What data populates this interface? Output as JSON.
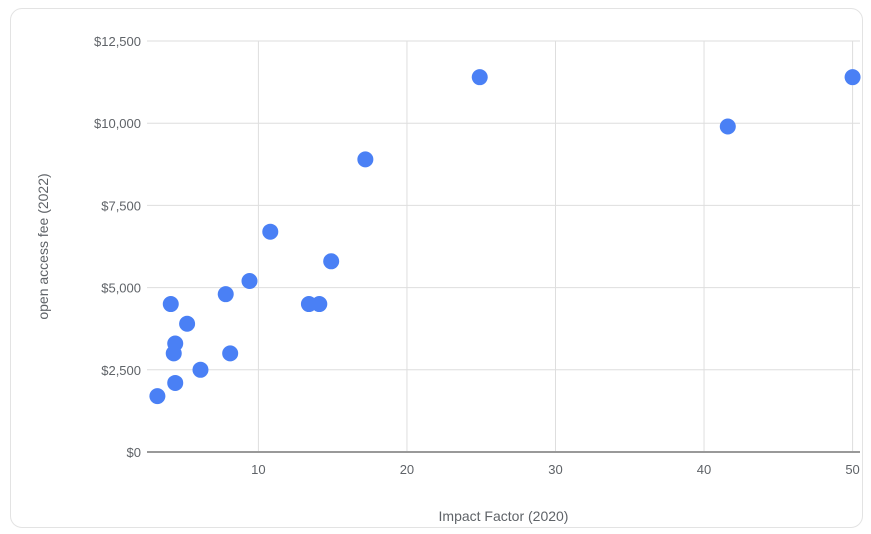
{
  "chart_data": {
    "type": "scatter",
    "xlabel": "Impact Factor (2020)",
    "ylabel": "open access fee (2022)",
    "xlim": [
      2.5,
      50.5
    ],
    "ylim": [
      0,
      12500
    ],
    "x_ticks": [
      10,
      20,
      30,
      40,
      50
    ],
    "x_tick_labels": [
      "10",
      "20",
      "30",
      "40",
      "50"
    ],
    "y_ticks": [
      0,
      2500,
      5000,
      7500,
      10000,
      12500
    ],
    "y_tick_labels": [
      "$0",
      "$2,500",
      "$5,000",
      "$7,500",
      "$10,000",
      "$12,500"
    ],
    "grid": true,
    "colors": {
      "point": "#4a80f5",
      "grid": "#dedede",
      "baseline": "#999999"
    },
    "series": [
      {
        "points": [
          {
            "x": 3.2,
            "y": 1700
          },
          {
            "x": 4.1,
            "y": 4500
          },
          {
            "x": 4.3,
            "y": 3000
          },
          {
            "x": 4.4,
            "y": 3300
          },
          {
            "x": 4.4,
            "y": 2100
          },
          {
            "x": 5.2,
            "y": 3900
          },
          {
            "x": 6.1,
            "y": 2500
          },
          {
            "x": 7.8,
            "y": 4800
          },
          {
            "x": 8.1,
            "y": 3000
          },
          {
            "x": 9.4,
            "y": 5200
          },
          {
            "x": 10.8,
            "y": 6700
          },
          {
            "x": 13.4,
            "y": 4500
          },
          {
            "x": 14.1,
            "y": 4500
          },
          {
            "x": 14.9,
            "y": 5800
          },
          {
            "x": 17.2,
            "y": 8900
          },
          {
            "x": 24.9,
            "y": 11400
          },
          {
            "x": 41.6,
            "y": 9900
          },
          {
            "x": 50.0,
            "y": 11400
          }
        ]
      }
    ]
  }
}
